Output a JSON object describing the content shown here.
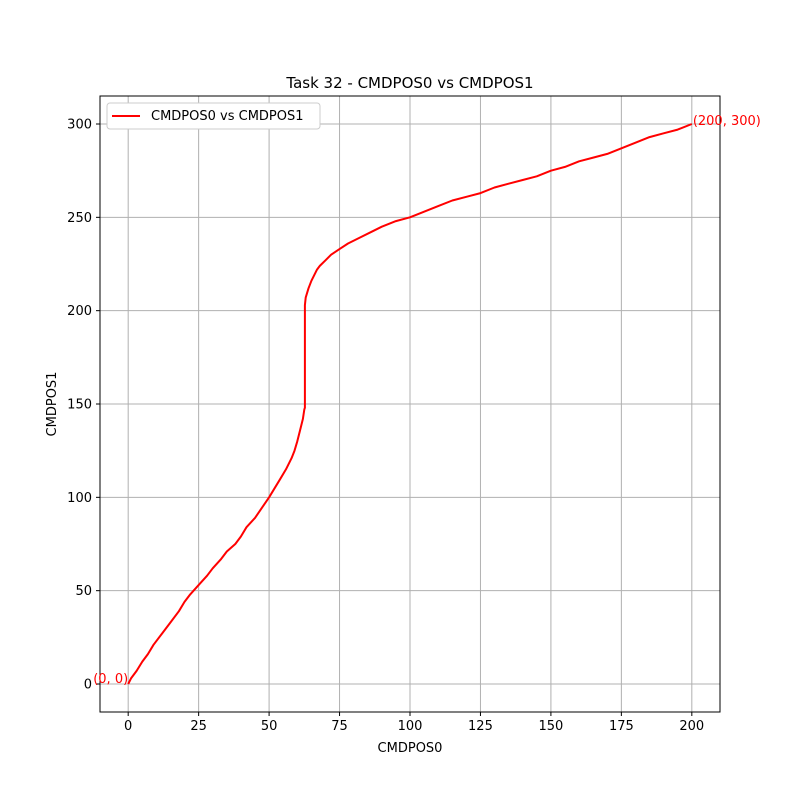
{
  "chart_data": {
    "type": "line",
    "title": "Task 32 - CMDPOS0 vs CMDPOS1",
    "xlabel": "CMDPOS0",
    "ylabel": "CMDPOS1",
    "xlim": [
      -10,
      210
    ],
    "ylim": [
      -15,
      315
    ],
    "xticks": [
      0,
      25,
      50,
      75,
      100,
      125,
      150,
      175,
      200
    ],
    "yticks": [
      0,
      50,
      100,
      150,
      200,
      250,
      300
    ],
    "grid": true,
    "legend": {
      "position": "top-left",
      "entries": [
        "CMDPOS0 vs CMDPOS1"
      ]
    },
    "series": [
      {
        "name": "CMDPOS0 vs CMDPOS1",
        "color": "#ff0000",
        "x": [
          0,
          1,
          3,
          5,
          7,
          9,
          12,
          15,
          18,
          20,
          22,
          25,
          28,
          30,
          33,
          35,
          38,
          40,
          42,
          45,
          50,
          54,
          56,
          58,
          59,
          60,
          61,
          62,
          62.5,
          62.7,
          62.7,
          63,
          64,
          65,
          66,
          67,
          68,
          70,
          72,
          75,
          78,
          82,
          86,
          90,
          95,
          100,
          105,
          110,
          115,
          120,
          125,
          130,
          135,
          140,
          145,
          150,
          155,
          160,
          165,
          170,
          175,
          180,
          185,
          190,
          195,
          200
        ],
        "y": [
          0,
          3,
          7,
          12,
          16,
          21,
          27,
          33,
          39,
          44,
          48,
          53,
          58,
          62,
          67,
          71,
          75,
          79,
          84,
          89,
          100,
          110,
          115,
          121,
          125,
          130,
          136,
          142,
          147,
          148,
          203,
          207,
          212,
          216,
          219,
          222,
          224,
          227,
          230,
          233,
          236,
          239,
          242,
          245,
          248,
          250,
          253,
          256,
          259,
          261,
          263,
          266,
          268,
          270,
          272,
          275,
          277,
          280,
          282,
          284,
          287,
          290,
          293,
          295,
          297,
          300
        ]
      }
    ],
    "annotations": [
      {
        "text": "(0, 0)",
        "x": 0,
        "y": 0,
        "anchor": "end",
        "color": "#ff0000"
      },
      {
        "text": "(200, 300)",
        "x": 200,
        "y": 300,
        "anchor": "start",
        "color": "#ff0000"
      }
    ]
  }
}
